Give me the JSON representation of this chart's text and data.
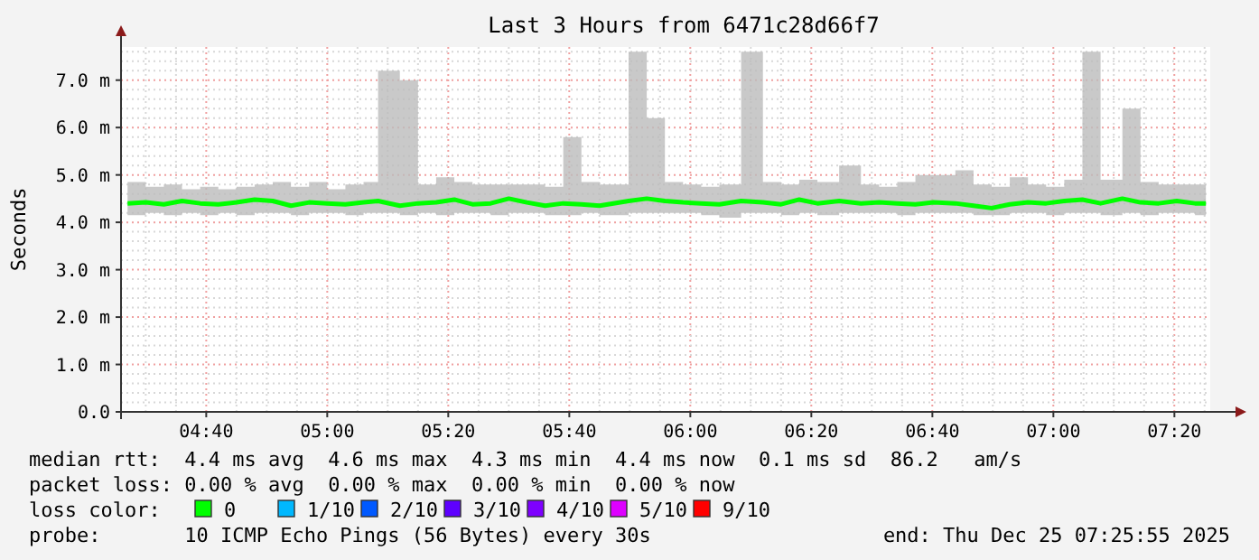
{
  "chart_data": {
    "type": "line",
    "title": "Last 3 Hours from 6471c28d66f7",
    "ylabel": "Seconds",
    "xlim": [
      4.432,
      7.432
    ],
    "ylim": [
      0,
      7.7
    ],
    "xticks": [
      {
        "value": 4.6667,
        "label": "04:40"
      },
      {
        "value": 5.0,
        "label": "05:00"
      },
      {
        "value": 5.3333,
        "label": "05:20"
      },
      {
        "value": 5.6667,
        "label": "05:40"
      },
      {
        "value": 6.0,
        "label": "06:00"
      },
      {
        "value": 6.3333,
        "label": "06:20"
      },
      {
        "value": 6.6667,
        "label": "06:40"
      },
      {
        "value": 7.0,
        "label": "07:00"
      },
      {
        "value": 7.3333,
        "label": "07:20"
      }
    ],
    "yticks": [
      {
        "value": 0,
        "label": "0.0"
      },
      {
        "value": 1,
        "label": "1.0 m"
      },
      {
        "value": 2,
        "label": "2.0 m"
      },
      {
        "value": 3,
        "label": "3.0 m"
      },
      {
        "value": 4,
        "label": "4.0 m"
      },
      {
        "value": 5,
        "label": "5.0 m"
      },
      {
        "value": 6,
        "label": "6.0 m"
      },
      {
        "value": 7,
        "label": "7.0 m"
      }
    ],
    "grid": true,
    "x": [
      4.45,
      4.5,
      4.55,
      4.6,
      4.65,
      4.7,
      4.75,
      4.8,
      4.85,
      4.9,
      4.95,
      5.0,
      5.05,
      5.1,
      5.14,
      5.2,
      5.25,
      5.3,
      5.35,
      5.4,
      5.45,
      5.5,
      5.55,
      5.6,
      5.65,
      5.7,
      5.75,
      5.83,
      5.88,
      5.93,
      5.98,
      6.03,
      6.08,
      6.14,
      6.2,
      6.25,
      6.3,
      6.35,
      6.41,
      6.47,
      6.52,
      6.57,
      6.62,
      6.67,
      6.73,
      6.78,
      6.83,
      6.88,
      6.93,
      6.98,
      7.03,
      7.08,
      7.13,
      7.19,
      7.24,
      7.29,
      7.34,
      7.39,
      7.42
    ],
    "series": [
      {
        "color": "#00ff00",
        "values": [
          4.4,
          4.42,
          4.38,
          4.45,
          4.4,
          4.38,
          4.42,
          4.48,
          4.45,
          4.35,
          4.42,
          4.4,
          4.38,
          4.42,
          4.45,
          4.35,
          4.4,
          4.42,
          4.48,
          4.38,
          4.4,
          4.5,
          4.42,
          4.35,
          4.4,
          4.38,
          4.35,
          4.45,
          4.5,
          4.45,
          4.42,
          4.4,
          4.38,
          4.45,
          4.42,
          4.38,
          4.48,
          4.4,
          4.45,
          4.4,
          4.42,
          4.4,
          4.38,
          4.42,
          4.4,
          4.35,
          4.3,
          4.38,
          4.42,
          4.4,
          4.45,
          4.48,
          4.4,
          4.5,
          4.42,
          4.4,
          4.45,
          4.4,
          4.4
        ],
        "lower": [
          4.15,
          4.2,
          4.15,
          4.2,
          4.15,
          4.2,
          4.15,
          4.2,
          4.2,
          4.15,
          4.2,
          4.2,
          4.15,
          4.2,
          4.2,
          4.15,
          4.2,
          4.15,
          4.2,
          4.2,
          4.15,
          4.2,
          4.2,
          4.15,
          4.15,
          4.2,
          4.15,
          4.2,
          4.2,
          4.2,
          4.2,
          4.15,
          4.1,
          4.2,
          4.2,
          4.15,
          4.2,
          4.15,
          4.2,
          4.2,
          4.2,
          4.15,
          4.2,
          4.2,
          4.2,
          4.15,
          4.15,
          4.2,
          4.2,
          4.15,
          4.2,
          4.2,
          4.15,
          4.2,
          4.15,
          4.2,
          4.2,
          4.15,
          4.15
        ],
        "upper": [
          4.85,
          4.75,
          4.8,
          4.7,
          4.75,
          4.7,
          4.75,
          4.8,
          4.85,
          4.75,
          4.85,
          4.7,
          4.8,
          4.85,
          7.2,
          7.0,
          4.8,
          4.95,
          4.85,
          4.8,
          4.8,
          4.8,
          4.8,
          4.75,
          5.8,
          4.85,
          4.8,
          7.6,
          6.2,
          4.85,
          4.8,
          4.75,
          4.8,
          7.6,
          4.85,
          4.8,
          4.9,
          4.85,
          5.2,
          4.8,
          4.75,
          4.85,
          5.0,
          5.0,
          5.1,
          4.8,
          4.75,
          4.95,
          4.8,
          4.75,
          4.9,
          7.6,
          4.9,
          6.4,
          4.85,
          4.8,
          4.8,
          4.8,
          5.2
        ]
      }
    ],
    "annotations": [
      "median rtt:  4.4 ms avg  4.6 ms max  4.3 ms min  4.4 ms now  0.1 ms sd  86.2   am/s",
      "packet loss: 0.00 % avg  0.00 % max  0.00 % min  0.00 % now",
      "loss color:",
      "0",
      "1/10",
      "2/10",
      "3/10",
      "4/10",
      "5/10",
      "9/10",
      "probe:       10 ICMP Echo Pings (56 Bytes) every 30s",
      "end: Thu Dec 25 07:25:55 2025"
    ]
  }
}
